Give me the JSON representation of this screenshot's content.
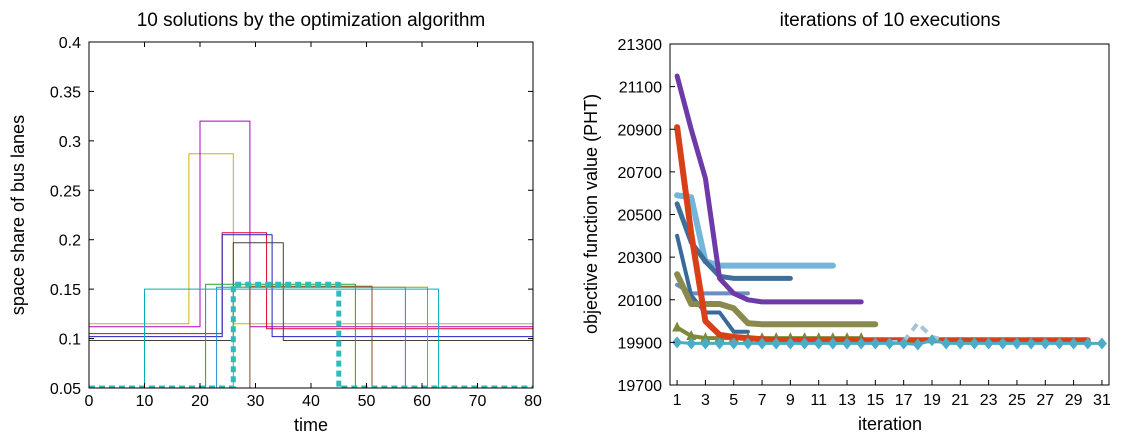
{
  "chart_data": [
    {
      "type": "line",
      "title": "10 solutions by the optimization algorithm",
      "xlabel": "time",
      "ylabel": "space share of bus lanes",
      "xlim": [
        0,
        80
      ],
      "ylim": [
        0.05,
        0.4
      ],
      "xticks": [
        0,
        10,
        20,
        30,
        40,
        50,
        60,
        70,
        80
      ],
      "yticks": [
        0.05,
        0.1,
        0.15,
        0.2,
        0.25,
        0.3,
        0.35,
        0.4
      ],
      "ytick_labels": [
        "0.05",
        "0.1",
        "0.15",
        "0.2",
        "0.25",
        "0.3",
        "0.35",
        "0.4"
      ],
      "grid": false,
      "legend": "none",
      "series": [
        {
          "color": "#d4b000",
          "width": 1,
          "dash": false,
          "x": [
            0,
            18,
            18,
            26,
            26,
            32,
            32,
            80
          ],
          "y": [
            0.115,
            0.115,
            0.287,
            0.287,
            0.115,
            0.115,
            0.115,
            0.115
          ]
        },
        {
          "color": "#b000c8",
          "width": 1,
          "dash": false,
          "x": [
            0,
            20,
            20,
            29,
            29,
            80
          ],
          "y": [
            0.112,
            0.112,
            0.32,
            0.32,
            0.112,
            0.112
          ]
        },
        {
          "color": "#e0002a",
          "width": 1,
          "dash": false,
          "x": [
            0,
            9,
            9,
            22,
            22,
            24,
            24,
            32,
            32,
            80
          ],
          "y": [
            0.105,
            0.105,
            0.105,
            0.105,
            0.105,
            0.105,
            0.207,
            0.207,
            0.11,
            0.11
          ]
        },
        {
          "color": "#2020c0",
          "width": 1,
          "dash": false,
          "x": [
            0,
            24,
            24,
            33,
            33,
            80
          ],
          "y": [
            0.102,
            0.102,
            0.205,
            0.205,
            0.102,
            0.102
          ]
        },
        {
          "color": "#404040",
          "width": 1,
          "dash": false,
          "x": [
            0,
            26,
            26,
            35,
            35,
            80
          ],
          "y": [
            0.098,
            0.098,
            0.197,
            0.197,
            0.098,
            0.098
          ]
        },
        {
          "color": "#22a822",
          "width": 1,
          "dash": false,
          "x": [
            0,
            21,
            21,
            48,
            48,
            80
          ],
          "y": [
            0.05,
            0.05,
            0.155,
            0.155,
            0.05,
            0.05
          ]
        },
        {
          "color": "#1f8fd0",
          "width": 1,
          "dash": false,
          "x": [
            0,
            23,
            23,
            57,
            57,
            80
          ],
          "y": [
            0.05,
            0.05,
            0.152,
            0.152,
            0.05,
            0.05
          ]
        },
        {
          "color": "#a0a000",
          "width": 1,
          "dash": false,
          "x": [
            0,
            26,
            26,
            61,
            61,
            80
          ],
          "y": [
            0.05,
            0.05,
            0.152,
            0.152,
            0.05,
            0.05
          ]
        },
        {
          "color": "#00b0b0",
          "width": 1,
          "dash": false,
          "x": [
            0,
            10,
            10,
            63,
            63,
            80
          ],
          "y": [
            0.05,
            0.05,
            0.15,
            0.15,
            0.05,
            0.05
          ]
        },
        {
          "color": "#8b4a2a",
          "width": 1,
          "dash": false,
          "x": [
            0,
            29,
            29,
            51,
            51,
            80
          ],
          "y": [
            0.05,
            0.05,
            0.153,
            0.153,
            0.05,
            0.05
          ]
        },
        {
          "color": "#2cbcbc",
          "width": 5,
          "dash": true,
          "x": [
            0,
            26,
            26,
            45,
            45,
            80
          ],
          "y": [
            0.05,
            0.05,
            0.155,
            0.155,
            0.05,
            0.05
          ]
        }
      ]
    },
    {
      "type": "line",
      "title": "iterations of 10 executions",
      "xlabel": "iteration",
      "ylabel": "objective function value (PHT)",
      "xlim": [
        0.5,
        31.5
      ],
      "ylim": [
        19700,
        21300
      ],
      "xticks": [
        1,
        3,
        5,
        7,
        9,
        11,
        13,
        15,
        17,
        19,
        21,
        23,
        25,
        27,
        29,
        31
      ],
      "yticks": [
        19700,
        19900,
        20100,
        20300,
        20500,
        20700,
        20900,
        21100,
        21300
      ],
      "grid": false,
      "legend": "none",
      "series": [
        {
          "color": "#6c8ebf",
          "width": 4,
          "marker": false,
          "x": [
            1,
            2,
            3,
            4,
            5,
            6
          ],
          "y": [
            20170,
            20130,
            20130,
            20130,
            20130,
            20130
          ]
        },
        {
          "color": "#3a6a9a",
          "width": 4,
          "marker": false,
          "x": [
            1,
            2,
            3,
            4,
            5,
            6
          ],
          "y": [
            20400,
            20120,
            20040,
            20040,
            19950,
            19950
          ]
        },
        {
          "color": "#74b6d9",
          "width": 6,
          "marker": false,
          "x": [
            1,
            2,
            3,
            4,
            5,
            6,
            7,
            8,
            9,
            10,
            11,
            12
          ],
          "y": [
            20590,
            20580,
            20280,
            20260,
            20260,
            20260,
            20260,
            20260,
            20260,
            20260,
            20260,
            20260
          ]
        },
        {
          "color": "#3f6e9a",
          "width": 5,
          "marker": false,
          "x": [
            1,
            2,
            3,
            4,
            5,
            6,
            7,
            8,
            9
          ],
          "y": [
            20550,
            20370,
            20280,
            20210,
            20200,
            20200,
            20200,
            20200,
            20200
          ]
        },
        {
          "color": "#6e3aa8",
          "width": 5,
          "marker": false,
          "x": [
            1,
            2,
            3,
            4,
            5,
            6,
            7,
            8,
            9,
            10,
            11,
            12,
            13,
            14
          ],
          "y": [
            21150,
            20900,
            20670,
            20200,
            20130,
            20100,
            20090,
            20090,
            20090,
            20090,
            20090,
            20090,
            20090,
            20090
          ]
        },
        {
          "color": "#8a8a4e",
          "width": 6,
          "marker": false,
          "x": [
            1,
            2,
            3,
            4,
            5,
            6,
            7,
            8,
            9,
            10,
            11,
            12,
            13,
            14,
            15
          ],
          "y": [
            20220,
            20080,
            20080,
            20080,
            20060,
            19990,
            19985,
            19985,
            19985,
            19985,
            19985,
            19985,
            19985,
            19985,
            19985
          ]
        },
        {
          "color": "#7a8a3a",
          "width": 4,
          "marker": true,
          "x": [
            1,
            2,
            3,
            4,
            5,
            6,
            7,
            8,
            9,
            10,
            11,
            12,
            13,
            14
          ],
          "y": [
            19970,
            19930,
            19920,
            19920,
            19920,
            19920,
            19920,
            19920,
            19920,
            19920,
            19920,
            19920,
            19920,
            19920
          ]
        },
        {
          "color": "#d8401a",
          "width": 6,
          "marker": false,
          "x": [
            1,
            2,
            3,
            4,
            5,
            6,
            7,
            8,
            9,
            10,
            11,
            12,
            13,
            14,
            15,
            16,
            17,
            18,
            19,
            20,
            21,
            22,
            23,
            24,
            25,
            26,
            27,
            28,
            29,
            30
          ],
          "y": [
            20910,
            20410,
            20000,
            19935,
            19925,
            19920,
            19915,
            19910,
            19910,
            19910,
            19910,
            19910,
            19910,
            19910,
            19910,
            19910,
            19910,
            19910,
            19910,
            19910,
            19910,
            19910,
            19910,
            19910,
            19910,
            19910,
            19910,
            19910,
            19910,
            19910
          ]
        },
        {
          "color": "#a8c4d4",
          "width": 4,
          "marker": false,
          "dash": true,
          "x": [
            16,
            17,
            18,
            19,
            20
          ],
          "y": [
            19900,
            19905,
            19990,
            19925,
            19910
          ]
        },
        {
          "color": "#4bacc6",
          "width": 3,
          "marker": true,
          "x": [
            1,
            2,
            3,
            4,
            5,
            6,
            7,
            8,
            9,
            10,
            11,
            12,
            13,
            14,
            15,
            16,
            17,
            18,
            19,
            20,
            21,
            22,
            23,
            24,
            25,
            26,
            27,
            28,
            29,
            30,
            31
          ],
          "y": [
            19900,
            19895,
            19895,
            19895,
            19895,
            19895,
            19895,
            19895,
            19895,
            19895,
            19895,
            19895,
            19895,
            19895,
            19895,
            19895,
            19895,
            19890,
            19910,
            19895,
            19895,
            19895,
            19895,
            19895,
            19895,
            19895,
            19895,
            19895,
            19895,
            19895,
            19895
          ]
        }
      ]
    }
  ]
}
